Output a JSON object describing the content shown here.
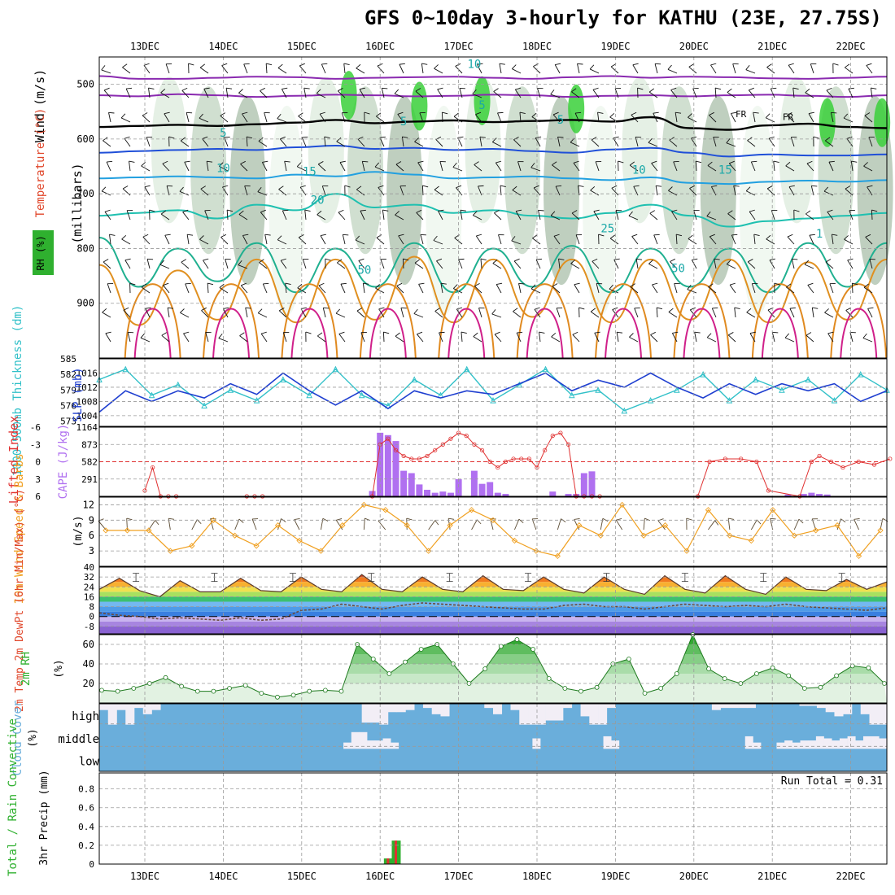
{
  "title": "GFS 0~10day 3-hourly for KATHU (23E, 27.75S)",
  "colors": {
    "temp_hot": "#e0462a",
    "temp_warm": "#f0a020",
    "temp_green": "#40c040",
    "temp_blue": "#3a8ee0",
    "temp_purple": "#8a63d2",
    "rh_green": "#2fb02f",
    "slp": "#1f3fd0",
    "thickness": "#30c0c8",
    "cape": "#b070f0",
    "lifted_index": "#e03030",
    "wind_speed": "#f0a020",
    "cloud_bg": "#6aaedb",
    "cloud_fill": "#f2eef6",
    "precip_total": "#2fb02f",
    "precip_conv": "#e03030"
  },
  "chart_data": [
    {
      "type": "heatmap",
      "name": "upper-air",
      "ylabel": "(millibars)",
      "side_labels": [
        "Wind (m/s)",
        "Temperature (°C)",
        "RH (%)"
      ],
      "x_ticks": [
        "13DEC",
        "14DEC",
        "15DEC",
        "16DEC",
        "17DEC",
        "18DEC",
        "19DEC",
        "20DEC",
        "21DEC",
        "22DEC"
      ],
      "y_ticks": [
        500,
        600,
        700,
        800,
        900
      ],
      "ylim": [
        1000,
        450
      ],
      "contour_labels": [
        "10",
        "5",
        "FR",
        "5",
        "FR",
        "5",
        "5",
        "10",
        "10",
        "15",
        "15",
        "20",
        "25",
        "1",
        "50",
        "50"
      ],
      "isotherms_c": [
        {
          "value": -10,
          "levels": [
            485,
            490,
            490,
            488,
            486,
            487,
            490,
            488,
            487,
            486,
            488,
            490,
            487,
            485,
            488,
            486,
            487,
            489,
            490,
            488,
            486
          ]
        },
        {
          "value": -5,
          "levels": [
            520,
            522,
            518,
            520,
            523,
            521,
            519,
            520,
            522,
            521,
            519,
            520,
            523,
            521,
            520,
            522,
            520,
            519,
            521,
            523,
            520
          ]
        },
        {
          "value": 0,
          "levels": [
            578,
            576,
            574,
            576,
            573,
            570,
            565,
            571,
            568,
            566,
            569,
            567,
            565,
            568,
            560,
            580,
            583,
            575,
            572,
            578,
            580
          ]
        },
        {
          "value": 5,
          "levels": [
            625,
            622,
            620,
            618,
            620,
            615,
            612,
            618,
            616,
            620,
            618,
            622,
            625,
            619,
            616,
            625,
            632,
            628,
            630,
            630,
            628
          ]
        },
        {
          "value": 10,
          "levels": [
            672,
            670,
            668,
            670,
            672,
            665,
            668,
            660,
            665,
            672,
            670,
            668,
            672,
            675,
            670,
            680,
            682,
            678,
            676,
            678,
            675
          ]
        },
        {
          "value": 15,
          "levels": [
            740,
            735,
            730,
            745,
            720,
            730,
            700,
            725,
            720,
            735,
            730,
            740,
            745,
            735,
            720,
            740,
            760,
            750,
            745,
            740,
            735
          ]
        },
        {
          "value": 20,
          "levels": [
            780,
            870,
            800,
            860,
            790,
            880,
            800,
            870,
            790,
            880,
            800,
            870,
            795,
            880,
            800,
            870,
            800,
            880,
            790,
            870,
            790
          ]
        },
        {
          "value": 25,
          "levels": [
            830,
            940,
            840,
            930,
            820,
            935,
            820,
            930,
            815,
            935,
            820,
            925,
            820,
            935,
            820,
            930,
            820,
            935,
            825,
            930,
            820
          ]
        }
      ]
    },
    {
      "type": "line",
      "name": "slp-thickness",
      "ylabel_left": "1000-500mb Thickness (dm)",
      "ylabel_right": "SLP (mb)",
      "left_ticks": [
        573,
        576,
        579,
        582,
        585
      ],
      "right_ticks": [
        1004,
        1008,
        1012,
        1016
      ],
      "ylim_left": [
        572,
        585
      ],
      "ylim_right": [
        1001,
        1020
      ],
      "series": [
        {
          "name": "SLP (mb)",
          "values": [
            1005,
            1011,
            1008,
            1011,
            1009,
            1013,
            1010,
            1016,
            1011,
            1007,
            1011,
            1006,
            1011,
            1009,
            1011,
            1010,
            1013,
            1016,
            1011,
            1014,
            1012,
            1016,
            1012,
            1009,
            1013,
            1010,
            1013,
            1011,
            1013,
            1008,
            1011
          ]
        },
        {
          "name": "Thickness (dm)",
          "values": [
            581,
            583,
            578,
            580,
            576,
            579,
            577,
            581,
            578,
            583,
            578,
            576,
            581,
            578,
            583,
            577,
            580,
            583,
            578,
            579,
            575,
            577,
            579,
            582,
            577,
            581,
            579,
            581,
            577,
            582,
            579
          ]
        }
      ]
    },
    {
      "type": "bar",
      "name": "cape-lifted-index",
      "ylabel_left": "Lifted Index",
      "ylabel_right": "CAPE (J/kg)",
      "li_ticks": [
        "-6",
        "-3",
        "0",
        "3",
        "6"
      ],
      "cape_ticks": [
        "1164",
        "873",
        "582",
        "291"
      ],
      "cape_ylim": [
        0,
        1164
      ],
      "li_ylim": [
        6,
        -6
      ],
      "cape_x": [
        2.9,
        3.0,
        3.1,
        3.2,
        3.3,
        3.4,
        3.5,
        3.6,
        3.7,
        3.8,
        3.9,
        4.0,
        4.2,
        4.3,
        4.4,
        4.5,
        4.6,
        5.2,
        5.4,
        5.5,
        5.6,
        5.7,
        8.2,
        8.4,
        8.5,
        8.6,
        8.7
      ],
      "cape_values": [
        90,
        1070,
        1030,
        930,
        430,
        390,
        200,
        110,
        60,
        80,
        60,
        290,
        430,
        210,
        240,
        60,
        40,
        80,
        40,
        40,
        390,
        420,
        30,
        40,
        60,
        40,
        30
      ],
      "li_x": [
        0.0,
        0.1,
        0.2,
        0.3,
        0.4,
        1.3,
        1.4,
        1.5,
        2.9,
        3.0,
        3.1,
        3.2,
        3.3,
        3.4,
        3.5,
        3.6,
        3.7,
        3.8,
        3.9,
        4.0,
        4.1,
        4.2,
        4.3,
        4.4,
        4.5,
        4.6,
        4.7,
        4.8,
        4.9,
        5.0,
        5.1,
        5.2,
        5.3,
        5.4,
        5.5,
        5.6,
        5.7,
        5.8
      ],
      "li_values": [
        5,
        1,
        6,
        6,
        6,
        6,
        6,
        6,
        6,
        -3,
        -4,
        -2,
        -1,
        -0.5,
        -0.5,
        -1,
        -2,
        -3,
        -4,
        -5,
        -4.5,
        -3,
        -2,
        0,
        1,
        0,
        -0.5,
        -0.5,
        -0.5,
        1,
        -2,
        -4.5,
        -5,
        -3,
        6,
        6,
        6,
        6
      ],
      "li_x2": [
        7.05,
        7.2,
        7.4,
        7.6,
        7.8,
        7.95,
        8.35,
        8.5,
        8.6,
        8.75,
        8.9,
        9.1,
        9.3,
        9.5
      ],
      "li_values2": [
        6,
        0,
        -0.5,
        -0.5,
        0,
        5,
        6,
        0,
        -1,
        0,
        1,
        0,
        0.5,
        -0.5
      ]
    },
    {
      "type": "line",
      "name": "10m-wind",
      "ylabel_left": "10m Wind Speed & Barbs",
      "unit": "(m/s)",
      "ticks": [
        3,
        6,
        9,
        12
      ],
      "ylim": [
        0,
        13.5
      ],
      "series": [
        {
          "name": "10m Wind Speed (m/s)",
          "values": [
            7,
            7,
            7,
            3,
            4,
            9,
            6,
            4,
            8,
            5,
            3,
            8,
            12,
            11,
            8,
            3,
            8,
            11,
            9,
            5,
            3,
            2,
            8,
            6,
            12,
            6,
            8,
            3,
            11,
            6,
            5,
            11,
            6,
            7,
            8,
            2,
            7
          ]
        }
      ]
    },
    {
      "type": "area",
      "name": "temperature",
      "ylabel_left": "2m Temp 2m DewPt (6hr Min/Max) (°C)",
      "ticks": [
        "40",
        "32",
        "24",
        "16",
        "8",
        "0",
        "-8"
      ],
      "ylim": [
        -14,
        40
      ],
      "series": [
        {
          "name": "2m Temp (°C)",
          "values": [
            22,
            31,
            21,
            16,
            29,
            20,
            20,
            31,
            21,
            20,
            32,
            22,
            20,
            34,
            22,
            20,
            32,
            22,
            20,
            33,
            22,
            21,
            32,
            22,
            19,
            32,
            22,
            18,
            33,
            22,
            19,
            33,
            22,
            18,
            32,
            22,
            21,
            30,
            22,
            28
          ]
        },
        {
          "name": "2m DewPt (°C)",
          "values": [
            3,
            1,
            0,
            -2,
            -1,
            -2,
            -3,
            -1,
            -3,
            -2,
            5,
            6,
            10,
            8,
            6,
            9,
            11,
            10,
            9,
            8,
            7,
            6,
            6,
            9,
            10,
            8,
            8,
            6,
            8,
            10,
            9,
            8,
            9,
            8,
            10,
            8,
            7,
            6,
            5,
            7
          ]
        }
      ]
    },
    {
      "type": "area",
      "name": "2m-rh",
      "ylabel_left": "2m RH",
      "unit": "(%)",
      "ticks": [
        20,
        40,
        60
      ],
      "ylim": [
        0,
        70
      ],
      "series": [
        {
          "name": "2m RH (%)",
          "values": [
            13,
            12,
            15,
            20,
            26,
            17,
            12,
            12,
            15,
            18,
            10,
            6,
            8,
            12,
            13,
            12,
            60,
            45,
            30,
            42,
            55,
            60,
            40,
            20,
            35,
            58,
            65,
            55,
            25,
            15,
            12,
            16,
            40,
            45,
            10,
            15,
            30,
            70,
            35,
            25,
            20,
            30,
            36,
            28,
            15,
            16,
            28,
            38,
            36,
            20
          ]
        }
      ]
    },
    {
      "type": "heatmap",
      "name": "cloud-cover",
      "ylabel_left": "Cloud Cover",
      "unit": "(%)",
      "rows": [
        "high",
        "middle",
        "low"
      ],
      "high_cover": [
        0.3,
        1,
        0.3,
        1,
        0.2,
        0.5,
        0.3,
        0,
        0,
        0,
        0,
        0,
        0,
        0,
        0,
        0,
        0,
        0,
        0,
        0,
        0,
        0,
        0,
        0,
        0,
        0,
        0,
        0,
        0,
        0,
        0.9,
        0.9,
        1,
        0.4,
        0.4,
        0.3,
        0,
        0.2,
        0.5,
        0.6,
        0,
        0,
        0,
        0,
        0.2,
        0.5,
        0,
        0.3,
        1,
        1,
        1,
        0.8,
        0.8,
        0.2,
        0,
        0.6,
        1,
        1,
        0.2,
        0,
        0,
        0,
        0,
        0,
        0,
        0,
        0,
        0,
        0,
        0,
        0.3,
        0.2,
        0.2,
        0.2,
        0.2,
        0,
        0,
        0,
        0,
        0,
        0.1,
        0.1,
        0.2,
        0.4,
        0.6,
        0.5,
        0,
        0.5,
        1,
        1
      ],
      "middle_cover": [
        0,
        0,
        0,
        0,
        0,
        0,
        0,
        0,
        0,
        0,
        0,
        0,
        0,
        0,
        0,
        0,
        0,
        0,
        0,
        0,
        0,
        0,
        0,
        0,
        0,
        0,
        0,
        0,
        0,
        0,
        0,
        0.3,
        0.8,
        0.8,
        0.4,
        0.4,
        0.5,
        0.3,
        0,
        0,
        0,
        0,
        0,
        0,
        0,
        0,
        0,
        0,
        0,
        0,
        0,
        0,
        0,
        0,
        0,
        0.5,
        0,
        0,
        0,
        0,
        0,
        0,
        0,
        0,
        0.6,
        0.4,
        0,
        0,
        0,
        0,
        0,
        0,
        0,
        0,
        0,
        0,
        0,
        0,
        0,
        0,
        0,
        0,
        0.6,
        0.3,
        0,
        0,
        0.3,
        0.4,
        0.3,
        0.4,
        0.4,
        0.6,
        0.5,
        0.4,
        0.5,
        0.6,
        0.4,
        0.6,
        0.6,
        0.5
      ]
    },
    {
      "type": "bar",
      "name": "3hr-precip",
      "ylabel_left": "Total / Rain Convective",
      "unit": "3hr Precip (mm)",
      "run_total_label": "Run Total = 0.31",
      "ticks": [
        "0.8",
        "0.6",
        "0.4",
        "0.2",
        "0"
      ],
      "ylim": [
        0,
        0.97
      ],
      "x_ticks": [
        "13DEC",
        "14DEC",
        "15DEC",
        "16DEC",
        "17DEC",
        "18DEC",
        "19DEC",
        "20DEC",
        "21DEC",
        "22DEC"
      ],
      "bars": [
        {
          "x": 3.1,
          "total": 0.06,
          "convective": 0.05
        },
        {
          "x": 3.2,
          "total": 0.25,
          "convective": 0.2
        }
      ]
    }
  ]
}
